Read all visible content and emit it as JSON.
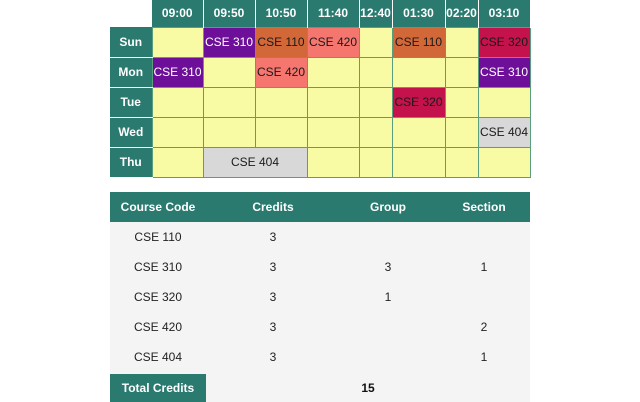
{
  "routine": {
    "times": [
      "09:00",
      "09:50",
      "10:50",
      "11:40",
      "12:40",
      "01:30",
      "02:20",
      "03:10"
    ],
    "days": [
      "Sun",
      "Mon",
      "Tue",
      "Wed",
      "Thu"
    ],
    "entries": {
      "sun_0950": "CSE 310",
      "sun_1050": "CSE 110",
      "sun_1140": "CSE 420",
      "sun_0130": "CSE 110",
      "sun_0310": "CSE 320",
      "mon_0900": "CSE 310",
      "mon_1050": "CSE 420",
      "mon_0310": "CSE 310",
      "tue_0130": "CSE 320",
      "wed_0310": "CSE 404",
      "thu_0950_1050": "CSE 404"
    },
    "colors": {
      "header": "#2a7a70",
      "empty_cell": "#f8fba4",
      "CSE 310": "#6e0f9a",
      "CSE 110": "#d26738",
      "CSE 420": "#f4766f",
      "CSE 320": "#c3124c",
      "CSE 404": "#d9d8d8"
    }
  },
  "summary": {
    "headers": {
      "code": "Course Code",
      "credits": "Credits",
      "group": "Group",
      "section": "Section"
    },
    "rows": [
      {
        "code": "CSE 110",
        "credits": "3",
        "group": "",
        "section": ""
      },
      {
        "code": "CSE 310",
        "credits": "3",
        "group": "3",
        "section": "1"
      },
      {
        "code": "CSE 320",
        "credits": "3",
        "group": "1",
        "section": ""
      },
      {
        "code": "CSE 420",
        "credits": "3",
        "group": "",
        "section": "2"
      },
      {
        "code": "CSE 404",
        "credits": "3",
        "group": "",
        "section": "1"
      }
    ],
    "total_label": "Total Credits",
    "total_value": "15"
  }
}
